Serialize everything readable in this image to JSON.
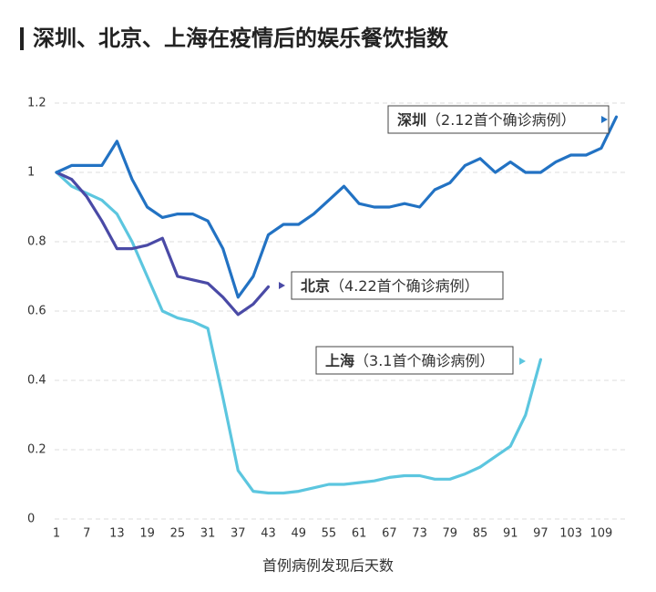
{
  "chart_data": {
    "type": "line",
    "title": "深圳、北京、上海在疫情后的娱乐餐饮指数",
    "x_label": "首例病例发现后天数",
    "x": [
      1,
      4,
      7,
      10,
      13,
      16,
      19,
      22,
      25,
      28,
      31,
      34,
      37,
      40,
      43,
      46,
      49,
      52,
      55,
      58,
      61,
      64,
      67,
      70,
      73,
      76,
      79,
      82,
      85,
      88,
      91,
      94,
      97,
      100,
      103,
      106,
      109,
      112
    ],
    "series": [
      {
        "name": "深圳",
        "note": "（2.12首个确诊病例）",
        "color": "#2272c3",
        "values": [
          1.0,
          1.02,
          1.02,
          1.02,
          1.09,
          0.98,
          0.9,
          0.87,
          0.88,
          0.88,
          0.86,
          0.78,
          0.64,
          0.7,
          0.82,
          0.85,
          0.85,
          0.88,
          0.92,
          0.96,
          0.91,
          0.9,
          0.9,
          0.91,
          0.9,
          0.95,
          0.97,
          1.02,
          1.04,
          1.0,
          1.03,
          1.0,
          1.0,
          1.03,
          1.05,
          1.05,
          1.07,
          1.16
        ]
      },
      {
        "name": "北京",
        "note": "（4.22首个确诊病例）",
        "color": "#4a4aa6",
        "values": [
          1.0,
          0.98,
          0.93,
          0.86,
          0.78,
          0.78,
          0.79,
          0.81,
          0.7,
          0.69,
          0.68,
          0.64,
          0.59,
          0.62,
          0.67,
          null,
          null,
          null,
          null,
          null,
          null,
          null,
          null,
          null,
          null,
          null,
          null,
          null,
          null,
          null,
          null,
          null,
          null,
          null,
          null,
          null,
          null,
          null
        ]
      },
      {
        "name": "上海",
        "note": "（3.1首个确诊病例）",
        "color": "#5cc6df",
        "values": [
          1.0,
          0.96,
          0.94,
          0.92,
          0.88,
          0.8,
          0.7,
          0.6,
          0.58,
          0.57,
          0.55,
          0.35,
          0.14,
          0.08,
          0.075,
          0.075,
          0.08,
          0.09,
          0.1,
          0.1,
          0.105,
          0.11,
          0.12,
          0.125,
          0.125,
          0.115,
          0.115,
          0.13,
          0.15,
          0.18,
          0.21,
          0.3,
          0.46,
          null,
          null,
          null,
          null,
          null
        ]
      }
    ],
    "xlim": [
      1,
      113
    ],
    "xticks": [
      1,
      7,
      13,
      19,
      25,
      31,
      37,
      43,
      49,
      55,
      61,
      67,
      73,
      79,
      85,
      91,
      97,
      103,
      109
    ],
    "ylim": [
      0,
      1.2
    ],
    "yticks": [
      0,
      0.2,
      0.4,
      0.6,
      0.8,
      1,
      1.2
    ],
    "grid": true
  }
}
